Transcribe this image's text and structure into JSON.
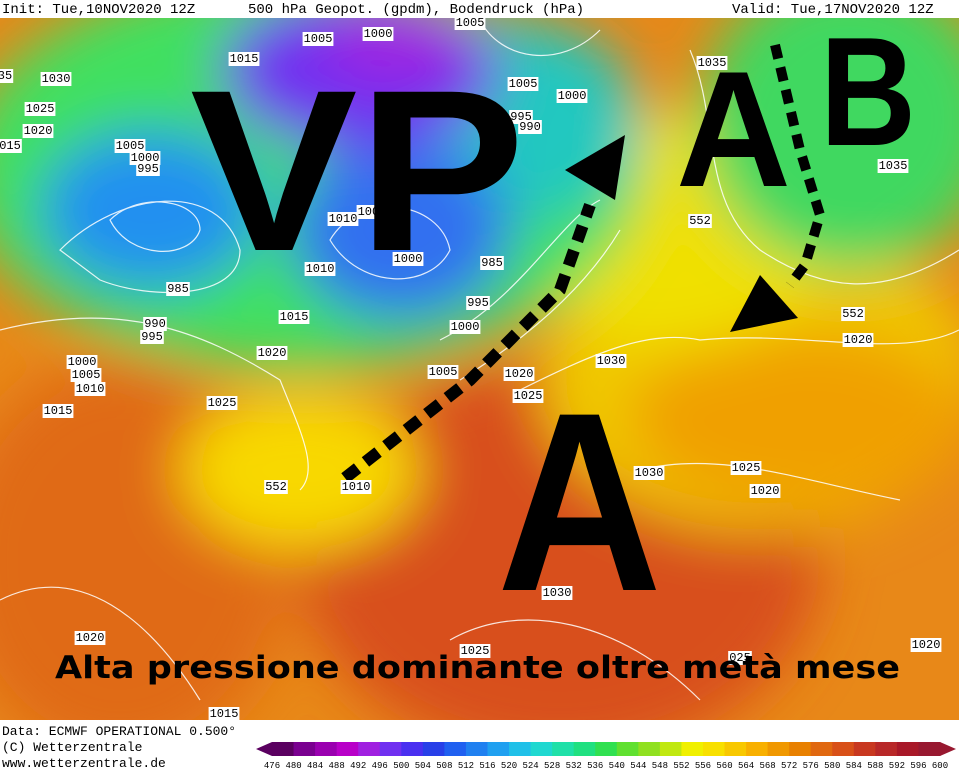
{
  "header": {
    "init": "Init: Tue,10NOV2020 12Z",
    "title": "500 hPa Geopot. (gpdm), Bodendruck (hPa)",
    "valid": "Valid: Tue,17NOV2020 12Z"
  },
  "overlay": {
    "vortex": "VP",
    "high_north": "A",
    "low": "B",
    "high_south": "A",
    "caption": "Alta pressione dominante oltre metà mese"
  },
  "contour_labels": [
    "1005",
    "1005",
    "1000",
    "1015",
    "1030",
    "1025",
    "1020",
    "015",
    "1005",
    "1000",
    "995",
    "1005",
    "1000",
    "995",
    "990",
    "1035",
    "1035",
    "1010",
    "1000",
    "1000",
    "1010",
    "985",
    "985",
    "995",
    "1000",
    "990",
    "995",
    "1015",
    "1020",
    "1000",
    "1005",
    "1010",
    "1015",
    "1025",
    "1005",
    "1020",
    "1030",
    "1025",
    "552",
    "552",
    "1020",
    "1030",
    "1025",
    "1020",
    "552",
    "1010",
    "1030",
    "1020",
    "1025",
    "1015",
    "1020",
    "025",
    "35"
  ],
  "footer": {
    "data": "Data: ECMWF OPERATIONAL 0.500°",
    "copyright": "(C) Wetterzentrale",
    "url": "www.wetterzentrale.de"
  },
  "colorbar": {
    "values": [
      476,
      480,
      484,
      488,
      492,
      496,
      500,
      504,
      508,
      512,
      516,
      520,
      524,
      528,
      532,
      536,
      540,
      544,
      548,
      552,
      556,
      560,
      564,
      568,
      572,
      576,
      580,
      584,
      588,
      592,
      596,
      600
    ],
    "colors": [
      "#5a0060",
      "#7a0090",
      "#9a00b0",
      "#b800c8",
      "#a020e0",
      "#7030f0",
      "#4a30f0",
      "#2840e8",
      "#2060f0",
      "#2080f0",
      "#20a0f0",
      "#20c0e8",
      "#20d8d0",
      "#20e0a8",
      "#20e080",
      "#30e050",
      "#60e030",
      "#90e020",
      "#c0e810",
      "#f0f000",
      "#f8e000",
      "#f8c800",
      "#f8b000",
      "#f09800",
      "#e88000",
      "#e06810",
      "#d85018",
      "#c83820",
      "#b82828",
      "#a81828",
      "#981830"
    ]
  }
}
